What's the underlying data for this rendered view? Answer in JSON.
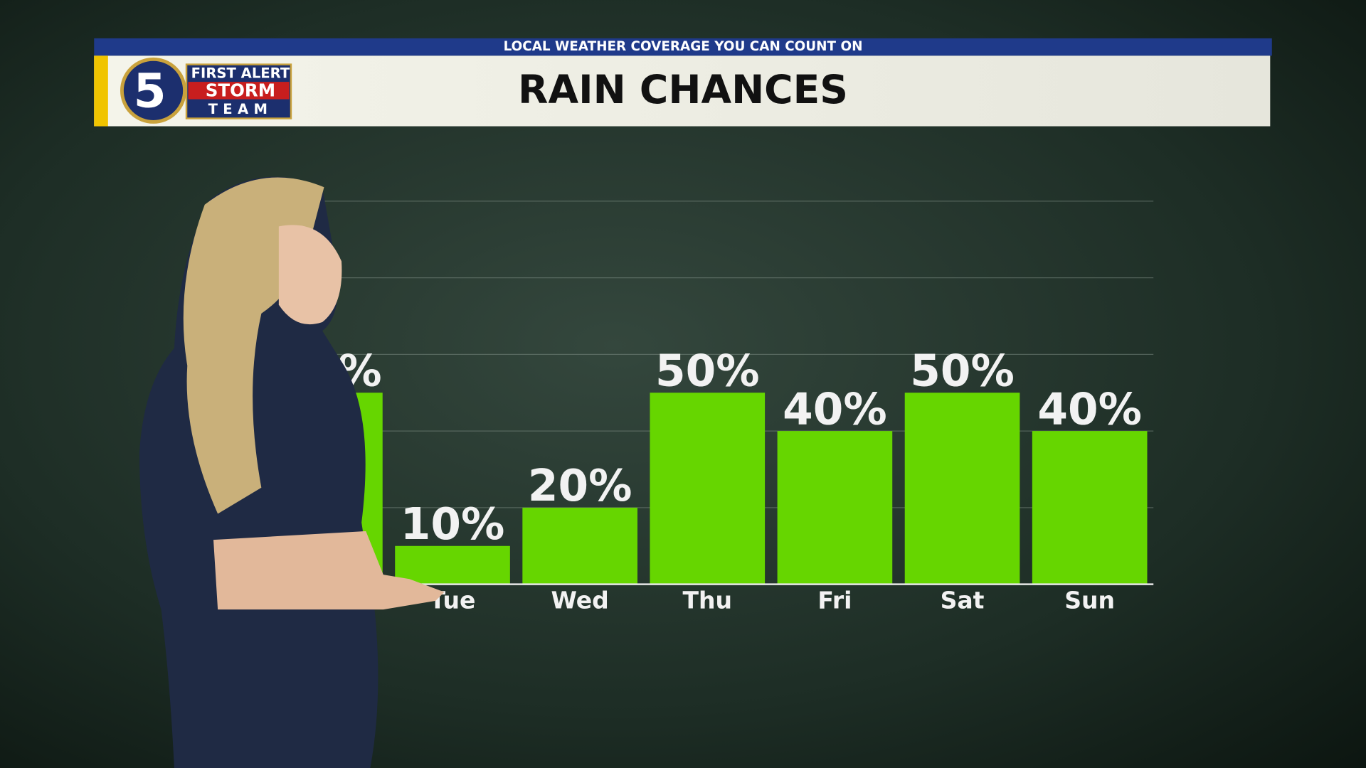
{
  "header": {
    "tagline": "LOCAL WEATHER COVERAGE YOU CAN COUNT ON",
    "logo_number": "5",
    "logo_line1": "FIRST ALERT",
    "logo_line2": "STORM",
    "logo_line3": "TEAM"
  },
  "chart_data": {
    "type": "bar",
    "title": "RAIN CHANCES",
    "categories": [
      null,
      "Tue",
      "Wed",
      "Thu",
      "Fri",
      "Sat",
      "Sun"
    ],
    "values": [
      50,
      10,
      20,
      50,
      40,
      50,
      40
    ],
    "value_labels": [
      "%",
      "10%",
      "20%",
      "50%",
      "40%",
      "50%",
      "40%"
    ],
    "color": "#66d600",
    "ylim": [
      0,
      100
    ],
    "yticks": [
      0,
      20,
      40,
      60,
      80,
      100
    ],
    "grid": true
  }
}
